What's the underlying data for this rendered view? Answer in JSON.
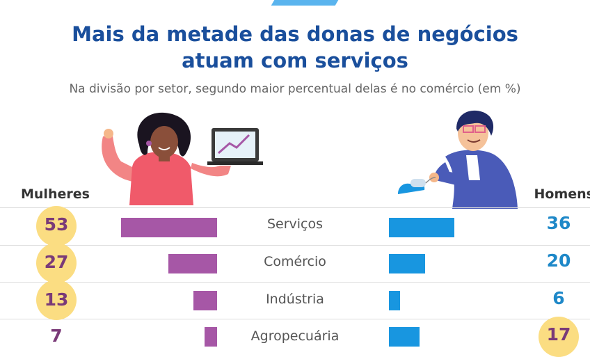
{
  "title_line1": "Mais da metade das donas de negócios",
  "title_line2": "atuam com serviços",
  "subtitle": "Na divisão por setor, segundo maior percentual delas é no comércio (em %)",
  "left_label": "Mulheres",
  "right_label": "Homens",
  "colors": {
    "women": "#a657a6",
    "men": "#1896e0",
    "highlight": "#fbdd82",
    "title": "#1a4f9c"
  },
  "chart_data": {
    "type": "bar",
    "categories": [
      "Serviços",
      "Comércio",
      "Indústria",
      "Agropecuária"
    ],
    "series": [
      {
        "name": "Mulheres",
        "values": [
          53,
          27,
          13,
          7
        ]
      },
      {
        "name": "Homens",
        "values": [
          36,
          20,
          6,
          17
        ]
      }
    ],
    "highlighted": {
      "Mulheres": [
        0,
        1,
        2
      ],
      "Homens": [
        3
      ]
    },
    "ylim": [
      0,
      60
    ]
  }
}
